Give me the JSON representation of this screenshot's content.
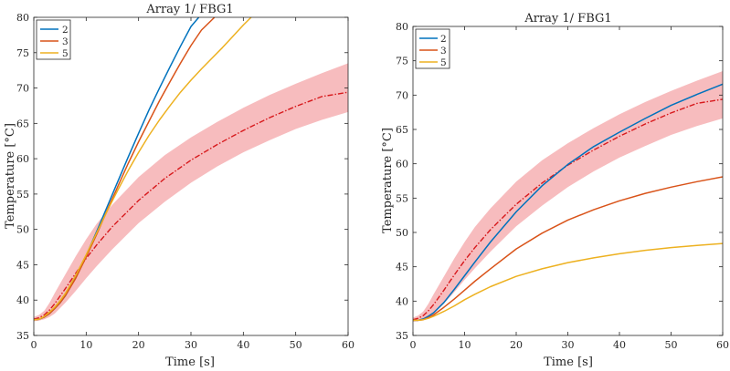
{
  "colors": {
    "band": "#f4a6a8",
    "center": "#d7191c",
    "series": [
      "#0072bd",
      "#d95319",
      "#edb120"
    ]
  },
  "chart_data": [
    {
      "type": "line",
      "title": "Array 1/ FBG1",
      "xlabel": "Time [s]",
      "ylabel": "Temperature [°C]",
      "xlim": [
        0,
        60
      ],
      "ylim": [
        35,
        80
      ],
      "xticks": [
        0,
        10,
        20,
        30,
        40,
        50,
        60
      ],
      "yticks": [
        35,
        40,
        45,
        50,
        55,
        60,
        65,
        70,
        75,
        80
      ],
      "grid": false,
      "legend": {
        "placement": "top-left",
        "entries": [
          "2",
          "3",
          "5"
        ]
      },
      "band": {
        "x": [
          0,
          1,
          2,
          3,
          4,
          6,
          8,
          10,
          12,
          15,
          20,
          25,
          30,
          35,
          40,
          45,
          50,
          55,
          60
        ],
        "upper": [
          37.6,
          37.9,
          38.5,
          39.6,
          41.0,
          43.6,
          46.2,
          48.6,
          50.8,
          53.5,
          57.4,
          60.5,
          63.0,
          65.2,
          67.2,
          69.0,
          70.6,
          72.1,
          73.5
        ],
        "lower": [
          37.0,
          37.1,
          37.3,
          37.6,
          38.1,
          39.6,
          41.3,
          43.1,
          44.8,
          47.2,
          50.9,
          53.9,
          56.6,
          58.9,
          60.9,
          62.6,
          64.2,
          65.5,
          66.6
        ],
        "center": [
          37.3,
          37.5,
          37.9,
          38.6,
          39.5,
          41.6,
          43.8,
          45.9,
          47.8,
          50.4,
          54.1,
          57.2,
          59.8,
          62.0,
          64.0,
          65.8,
          67.4,
          68.8,
          69.4
        ]
      },
      "series": [
        {
          "name": "2",
          "x": [
            0,
            1,
            2,
            3,
            4,
            5,
            6,
            8,
            10,
            12,
            14,
            16,
            18,
            20,
            22,
            24,
            26,
            28,
            30,
            31.5
          ],
          "y": [
            37.2,
            37.3,
            37.6,
            38.1,
            38.8,
            39.6,
            40.6,
            43.2,
            46.3,
            49.7,
            53.2,
            56.7,
            60.2,
            63.6,
            66.9,
            70.0,
            73.0,
            75.9,
            78.7,
            80
          ]
        },
        {
          "name": "3",
          "x": [
            0,
            1,
            2,
            3,
            4,
            5,
            6,
            8,
            10,
            12,
            14,
            16,
            18,
            20,
            22,
            24,
            26,
            28,
            30,
            32,
            34.5
          ],
          "y": [
            37.2,
            37.3,
            37.6,
            38.1,
            38.8,
            39.6,
            40.6,
            43.1,
            46.1,
            49.3,
            52.7,
            56.0,
            59.3,
            62.4,
            65.3,
            68.2,
            70.9,
            73.5,
            76.0,
            78.2,
            80
          ]
        },
        {
          "name": "5",
          "x": [
            0,
            1,
            2,
            3,
            4,
            5,
            6,
            8,
            10,
            12,
            14,
            16,
            18,
            20,
            22,
            24,
            26,
            28,
            30,
            32,
            34,
            36,
            38,
            40,
            41.5
          ],
          "y": [
            37.2,
            37.3,
            37.7,
            38.3,
            39.0,
            39.9,
            40.9,
            43.5,
            46.4,
            49.5,
            52.6,
            55.5,
            58.3,
            60.9,
            63.3,
            65.5,
            67.5,
            69.4,
            71.1,
            72.7,
            74.2,
            75.7,
            77.3,
            78.9,
            80
          ]
        }
      ]
    },
    {
      "type": "line",
      "title": "Array 1/ FBG1",
      "xlabel": "Time [s]",
      "ylabel": "Temperature [°C]",
      "xlim": [
        0,
        60
      ],
      "ylim": [
        35,
        80
      ],
      "xticks": [
        0,
        10,
        20,
        30,
        40,
        50,
        60
      ],
      "yticks": [
        35,
        40,
        45,
        50,
        55,
        60,
        65,
        70,
        75,
        80
      ],
      "grid": false,
      "legend": {
        "placement": "top-left",
        "entries": [
          "2",
          "3",
          "5"
        ]
      },
      "band": {
        "x": [
          0,
          1,
          2,
          3,
          4,
          6,
          8,
          10,
          12,
          15,
          20,
          25,
          30,
          35,
          40,
          45,
          50,
          55,
          60
        ],
        "upper": [
          37.6,
          37.9,
          38.5,
          39.6,
          41.0,
          43.6,
          46.2,
          48.6,
          50.8,
          53.5,
          57.4,
          60.5,
          63.0,
          65.2,
          67.2,
          69.0,
          70.6,
          72.1,
          73.5
        ],
        "lower": [
          37.0,
          37.1,
          37.3,
          37.6,
          38.1,
          39.6,
          41.3,
          43.1,
          44.8,
          47.2,
          50.9,
          53.9,
          56.6,
          58.9,
          60.9,
          62.6,
          64.2,
          65.5,
          66.6
        ],
        "center": [
          37.3,
          37.5,
          37.9,
          38.6,
          39.5,
          41.6,
          43.8,
          45.9,
          47.8,
          50.4,
          54.1,
          57.2,
          59.8,
          62.0,
          64.0,
          65.8,
          67.4,
          68.8,
          69.4
        ]
      },
      "series": [
        {
          "name": "2",
          "x": [
            0,
            1,
            2,
            3,
            4,
            6,
            8,
            10,
            12,
            15,
            20,
            25,
            30,
            35,
            40,
            45,
            50,
            55,
            60
          ],
          "y": [
            37.2,
            37.2,
            37.4,
            37.8,
            38.3,
            39.8,
            41.7,
            43.7,
            45.7,
            48.6,
            53.0,
            56.8,
            59.9,
            62.5,
            64.6,
            66.6,
            68.5,
            70.1,
            71.6
          ]
        },
        {
          "name": "3",
          "x": [
            0,
            1,
            2,
            3,
            4,
            6,
            8,
            10,
            12,
            15,
            20,
            25,
            30,
            35,
            40,
            45,
            50,
            55,
            60
          ],
          "y": [
            37.2,
            37.2,
            37.3,
            37.6,
            38.0,
            39.1,
            40.3,
            41.6,
            42.9,
            44.7,
            47.6,
            49.9,
            51.8,
            53.3,
            54.6,
            55.7,
            56.6,
            57.4,
            58.1
          ]
        },
        {
          "name": "5",
          "x": [
            0,
            1,
            2,
            3,
            4,
            6,
            8,
            10,
            12,
            15,
            20,
            25,
            30,
            35,
            40,
            45,
            50,
            55,
            60
          ],
          "y": [
            37.2,
            37.2,
            37.3,
            37.5,
            37.8,
            38.5,
            39.3,
            40.2,
            41.0,
            42.1,
            43.6,
            44.7,
            45.6,
            46.3,
            46.9,
            47.4,
            47.8,
            48.1,
            48.4
          ]
        }
      ]
    }
  ]
}
